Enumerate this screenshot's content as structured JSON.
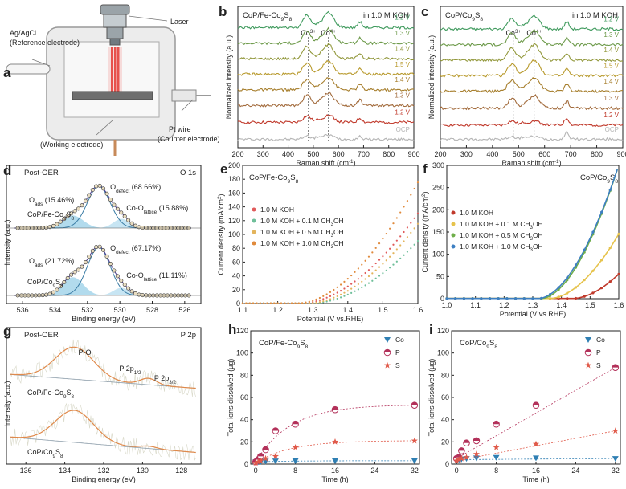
{
  "chart_data": [
    {
      "id": "a",
      "type": "diagram",
      "panel_label": "a",
      "labels": {
        "ref1": "Ag/AgCl",
        "ref2": "(Reference electrode)",
        "laser": "Laser",
        "we": "(Working electrode)",
        "ce1": "Pt wire",
        "ce2": "(Counter electrode)"
      }
    },
    {
      "id": "b",
      "type": "line",
      "panel_label": "b",
      "title": "CoP/Fe-Co",
      "title_sub": "9",
      "title_tail": "S",
      "title_sub2": "8",
      "condition": "in 1.0 M KOH",
      "xlabel": "Raman shift (cm",
      "xlabel_sup": "-1",
      "xlabel_tail": ")",
      "ylabel": "Normalized intensity (a.u.)",
      "xlim": [
        200,
        900
      ],
      "ylim": [
        0,
        10
      ],
      "xticks": [
        200,
        300,
        400,
        500,
        600,
        700,
        800,
        900
      ],
      "peaks": [
        {
          "label": "Co",
          "sup": "3+",
          "x": 480
        },
        {
          "label": "Co",
          "sup": "4+",
          "x": 560
        }
      ],
      "series": [
        {
          "name": "OCP",
          "offset": 0.6,
          "color": "#b5b5b5",
          "p1": 0.25,
          "p2": 0.3,
          "p3": 0.2
        },
        {
          "name": "1.2 V",
          "offset": 1.8,
          "color": "#c0392b",
          "p1": 0.45,
          "p2": 0.5,
          "p3": 0.3
        },
        {
          "name": "1.3 V",
          "offset": 3.0,
          "color": "#a26b3c",
          "p1": 0.75,
          "p2": 0.9,
          "p3": 0.4
        },
        {
          "name": "1.4 V",
          "offset": 4.1,
          "color": "#a77f2e",
          "p1": 0.75,
          "p2": 0.9,
          "p3": 0.4
        },
        {
          "name": "1.5 V",
          "offset": 5.2,
          "color": "#b89a2d",
          "p1": 0.8,
          "p2": 0.95,
          "p3": 0.4
        },
        {
          "name": "1.4 V",
          "offset": 6.3,
          "color": "#92983c",
          "p1": 0.85,
          "p2": 1.0,
          "p3": 0.4
        },
        {
          "name": "1.3 V",
          "offset": 7.4,
          "color": "#6d9a4a",
          "p1": 0.85,
          "p2": 1.0,
          "p3": 0.4
        },
        {
          "name": "1.2 V",
          "offset": 8.5,
          "color": "#3f9a5d",
          "p1": 0.9,
          "p2": 1.05,
          "p3": 0.4
        }
      ]
    },
    {
      "id": "c",
      "type": "line",
      "panel_label": "c",
      "title": "CoP/Co",
      "title_sub": "9",
      "title_tail": "S",
      "title_sub2": "8",
      "condition": "in 1.0 M KOH",
      "xlabel": "Raman shift (cm",
      "xlabel_sup": "-1",
      "xlabel_tail": ")",
      "ylabel": "Normalized intensity (a.u.)",
      "xlim": [
        200,
        900
      ],
      "ylim": [
        0,
        10
      ],
      "xticks": [
        200,
        300,
        400,
        500,
        600,
        700,
        800,
        900
      ],
      "peaks": [
        {
          "label": "Co",
          "sup": "3+",
          "x": 480
        },
        {
          "label": "Co",
          "sup": "4+",
          "x": 560
        }
      ],
      "series": [
        {
          "name": "OCP",
          "offset": 0.6,
          "color": "#b5b5b5",
          "p1": 0.2,
          "p2": 0.2,
          "p3": 0.5
        },
        {
          "name": "1.2 V",
          "offset": 1.6,
          "color": "#c0392b",
          "p1": 0.3,
          "p2": 0.3,
          "p3": 0.5
        },
        {
          "name": "1.3 V",
          "offset": 2.8,
          "color": "#a26b3c",
          "p1": 0.7,
          "p2": 0.9,
          "p3": 0.5
        },
        {
          "name": "1.4 V",
          "offset": 4.0,
          "color": "#a77f2e",
          "p1": 0.8,
          "p2": 1.0,
          "p3": 0.5
        },
        {
          "name": "1.5 V",
          "offset": 5.1,
          "color": "#b89a2d",
          "p1": 0.85,
          "p2": 1.1,
          "p3": 0.5
        },
        {
          "name": "1.4 V",
          "offset": 6.2,
          "color": "#92983c",
          "p1": 0.85,
          "p2": 1.1,
          "p3": 0.5
        },
        {
          "name": "1.3 V",
          "offset": 7.3,
          "color": "#6d9a4a",
          "p1": 0.8,
          "p2": 1.0,
          "p3": 0.5
        },
        {
          "name": "1.2 V",
          "offset": 8.4,
          "color": "#3f9a5d",
          "p1": 0.75,
          "p2": 0.9,
          "p3": 0.5
        }
      ]
    },
    {
      "id": "d",
      "type": "scatter",
      "panel_label": "d",
      "title_left": "Post-OER",
      "title_right": "O 1s",
      "xlabel": "Binding energy (eV)",
      "ylabel": "Intensity (a.u.)",
      "xlim": [
        537,
        525
      ],
      "xticks": [
        536,
        534,
        532,
        530,
        528,
        526
      ],
      "spectra": [
        {
          "sample": "CoP/Fe-Co",
          "sample_sub": "9",
          "sample_tail": "S",
          "sample_sub2": "8",
          "O_ads": "O",
          "O_ads_sub": "ads",
          "O_ads_val": "(15.46%)",
          "O_defect": "O",
          "O_defect_sub": "defect",
          "O_defect_val": "(68.66%)",
          "O_lattice": "Co-O",
          "O_lattice_sub": "lattice",
          "O_lattice_val": "(15.88%)"
        },
        {
          "sample": "CoP/Co",
          "sample_sub": "9",
          "sample_tail": "S",
          "sample_sub2": "8",
          "O_ads": "O",
          "O_ads_sub": "ads",
          "O_ads_val": "(21.72%)",
          "O_defect": "O",
          "O_defect_sub": "defect",
          "O_defect_val": "(67.17%)",
          "O_lattice": "Co-O",
          "O_lattice_sub": "lattice",
          "O_lattice_val": "(11.11%)"
        }
      ]
    },
    {
      "id": "e",
      "type": "scatter",
      "panel_label": "e",
      "title": "CoP/Fe-Co",
      "title_sub": "9",
      "title_tail": "S",
      "title_sub2": "8",
      "xlabel": "Potential (V vs.RHE)",
      "ylabel": "Current density (mA/cm",
      "ylabel_sup": "2",
      "ylabel_tail": ")",
      "xlim": [
        1.1,
        1.6
      ],
      "ylim": [
        0,
        200
      ],
      "xticks": [
        1.1,
        1.2,
        1.3,
        1.4,
        1.5,
        1.6
      ],
      "yticks": [
        0,
        20,
        40,
        60,
        80,
        100,
        120,
        140,
        160,
        180,
        200
      ],
      "series": [
        {
          "name": "1.0 M KOH",
          "color": "#e05a5a",
          "onset": 1.27,
          "j_end": 130
        },
        {
          "name": "1.0 M KOH + 0.1 M CH",
          "name_sub": "3",
          "name_tail": "OH",
          "color": "#6fbf9a",
          "onset": 1.3,
          "j_end": 90
        },
        {
          "name": "1.0 M KOH + 0.5 M CH",
          "name_sub": "3",
          "name_tail": "OH",
          "color": "#e3b45c",
          "onset": 1.29,
          "j_end": 115
        },
        {
          "name": "1.0 M KOH + 1.0 M CH",
          "name_sub": "3",
          "name_tail": "OH",
          "color": "#e08a3c",
          "onset": 1.26,
          "j_end": 175
        }
      ]
    },
    {
      "id": "f",
      "type": "line",
      "panel_label": "f",
      "title": "CoP/Co",
      "title_sub": "9",
      "title_tail": "S",
      "title_sub2": "8",
      "xlabel": "Potential (V vs.RHE)",
      "ylabel": "Current density (mA/cm",
      "ylabel_sup": "2",
      "ylabel_tail": ")",
      "xlim": [
        1.0,
        1.6
      ],
      "ylim": [
        0,
        300
      ],
      "xticks": [
        1.0,
        1.1,
        1.2,
        1.3,
        1.4,
        1.5,
        1.6
      ],
      "yticks": [
        0,
        50,
        100,
        150,
        200,
        250,
        300
      ],
      "series": [
        {
          "name": "1.0 M KOH",
          "color": "#c0392b",
          "onset": 1.44,
          "j_end": 55
        },
        {
          "name": "1.0 M KOH + 0.1 M CH",
          "name_sub": "3",
          "name_tail": "OH",
          "color": "#e6c34c",
          "onset": 1.36,
          "j_end": 145
        },
        {
          "name": "1.0 M KOH + 0.5 M CH",
          "name_sub": "3",
          "name_tail": "OH",
          "color": "#6fae4a",
          "onset": 1.33,
          "j_end": 300
        },
        {
          "name": "1.0 M KOH + 1.0 M CH",
          "name_sub": "3",
          "name_tail": "OH",
          "color": "#3d7fc2",
          "onset": 1.32,
          "j_end": 300
        }
      ]
    },
    {
      "id": "g",
      "type": "line",
      "panel_label": "g",
      "title_left": "Post-OER",
      "title_right": "P 2p",
      "xlabel": "Binding energy (eV)",
      "ylabel": "Intensity (a.u.)",
      "xlim": [
        137,
        127
      ],
      "xticks": [
        136,
        134,
        132,
        130,
        128
      ],
      "annotations": [
        {
          "text": "P-O",
          "sub": ""
        },
        {
          "text": "P 2p",
          "sub": "1/2"
        },
        {
          "text": "P 2p",
          "sub": "3/2"
        }
      ],
      "samples": [
        {
          "text": "CoP/Fe-Co",
          "sub": "9",
          "tail": "S",
          "sub2": "8"
        },
        {
          "text": "CoP/Co",
          "sub": "9",
          "tail": "S",
          "sub2": "8"
        }
      ]
    },
    {
      "id": "h",
      "type": "scatter",
      "panel_label": "h",
      "title": "CoP/Fe-Co",
      "title_sub": "9",
      "title_tail": "S",
      "title_sub2": "8",
      "xlabel": "Time (h)",
      "ylabel": "Total ions dissolved (μg)",
      "xlim": [
        -1,
        33
      ],
      "ylim": [
        0,
        120
      ],
      "xticks": [
        0,
        8,
        16,
        24,
        32
      ],
      "yticks": [
        0,
        20,
        40,
        60,
        80,
        100,
        120
      ],
      "x": [
        0,
        0.5,
        1,
        2,
        4,
        8,
        16,
        32
      ],
      "series": [
        {
          "name": "Co",
          "marker": "tri",
          "color": "#2f7fb3",
          "values": [
            2,
            2,
            2.2,
            2.5,
            2.8,
            3,
            3,
            3
          ]
        },
        {
          "name": "P",
          "marker": "circle",
          "color": "#b3315a",
          "values": [
            2,
            4,
            7,
            13,
            30,
            36,
            49,
            53
          ]
        },
        {
          "name": "S",
          "marker": "star",
          "color": "#e05a4a",
          "values": [
            1,
            2,
            3,
            5,
            7,
            15,
            20,
            21
          ]
        }
      ]
    },
    {
      "id": "i",
      "type": "scatter",
      "panel_label": "i",
      "title": "CoP/Co",
      "title_sub": "9",
      "title_tail": "S",
      "title_sub2": "8",
      "xlabel": "Time (h)",
      "ylabel": "Total ions dissolved (μg)",
      "xlim": [
        -1,
        33
      ],
      "ylim": [
        0,
        120
      ],
      "xticks": [
        0,
        8,
        16,
        24,
        32
      ],
      "yticks": [
        0,
        20,
        40,
        60,
        80,
        100,
        120
      ],
      "x": [
        0,
        0.5,
        1,
        2,
        4,
        8,
        16,
        32
      ],
      "series": [
        {
          "name": "Co",
          "marker": "tri",
          "color": "#2f7fb3",
          "values": [
            4,
            4,
            4.5,
            5,
            5.5,
            6,
            5.5,
            5
          ]
        },
        {
          "name": "P",
          "marker": "circle",
          "color": "#b3315a",
          "values": [
            5,
            6,
            12,
            19,
            21,
            36,
            53,
            87
          ]
        },
        {
          "name": "S",
          "marker": "star",
          "color": "#e05a4a",
          "values": [
            3,
            4,
            5,
            6,
            9,
            15,
            18,
            30
          ]
        }
      ]
    }
  ]
}
